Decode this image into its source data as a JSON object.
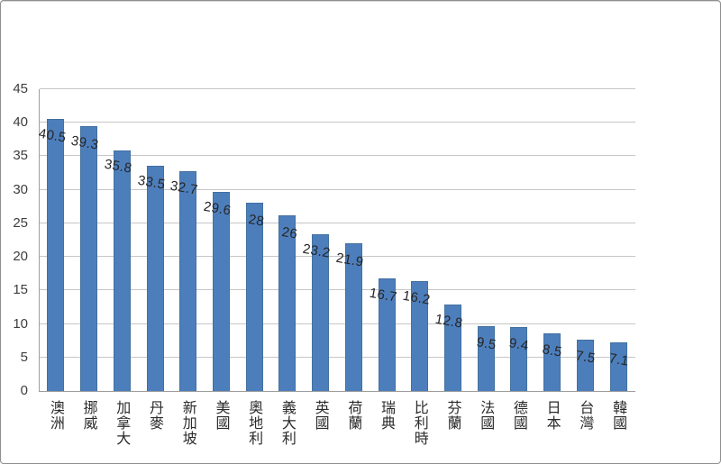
{
  "chart_data": {
    "type": "bar",
    "title": "",
    "xlabel": "",
    "ylabel": "",
    "categories": [
      "澳洲",
      "挪威",
      "加拿大",
      "丹麥",
      "新加坡",
      "美國",
      "奧地利",
      "義大利",
      "英國",
      "荷蘭",
      "瑞典",
      "比利時",
      "芬蘭",
      "法國",
      "德國",
      "日本",
      "台灣",
      "韓國"
    ],
    "values": [
      40.5,
      39.3,
      35.8,
      33.5,
      32.7,
      29.6,
      28,
      26,
      23.2,
      21.9,
      16.7,
      16.2,
      12.8,
      9.5,
      9.4,
      8.5,
      7.5,
      7.1
    ],
    "data_labels": [
      "40.5",
      "39.3",
      "35.8",
      "33.5",
      "32.7",
      "29.6",
      "28",
      "26",
      "23.2",
      "21.9",
      "16.7",
      "16.2",
      "12.8",
      "9.5",
      "9.4",
      "8.5",
      "7.5",
      "7.1"
    ],
    "y_ticks": [
      "0",
      "5",
      "10",
      "15",
      "20",
      "25",
      "30",
      "35",
      "40",
      "45"
    ],
    "ylim": [
      0,
      45
    ],
    "ytick_step": 5,
    "grid": true,
    "legend": false,
    "colors": {
      "bar": "#4d7ebc",
      "bar_edge": "#43719f",
      "gridline": "#c6c6c6",
      "axis_line": "#9e9e9e",
      "tick_text": "#3d3d3d",
      "label_text": "#262626",
      "border": "#8f8f8f",
      "background": "#ffffff"
    }
  }
}
